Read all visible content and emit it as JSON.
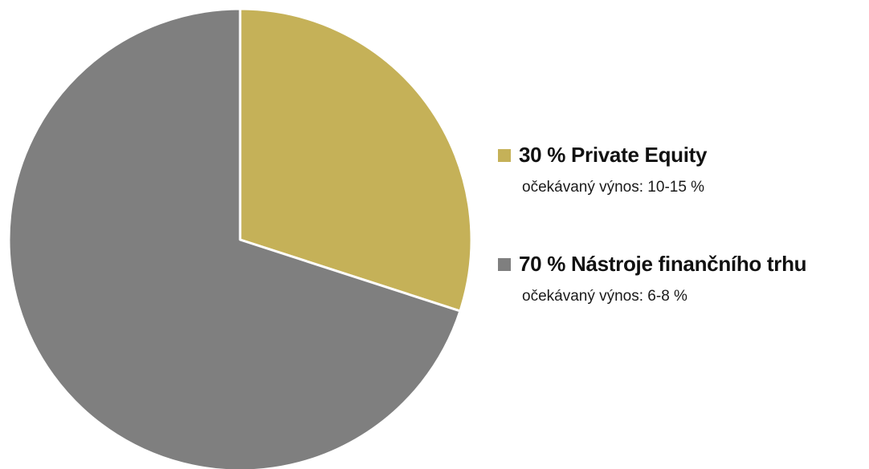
{
  "chart_data": {
    "type": "pie",
    "title": "",
    "slices": [
      {
        "value": 30,
        "label": "30 % Private Equity",
        "sublabel": "očekávaný výnos: 10-15 %",
        "color": "#c5b158"
      },
      {
        "value": 70,
        "label": "70 % Nástroje finančního trhu",
        "sublabel": "očekávaný výnos: 6-8 %",
        "color": "#7f7f7f"
      }
    ],
    "legend_position": "right",
    "start_angle": "12 o'clock",
    "direction": "clockwise"
  }
}
